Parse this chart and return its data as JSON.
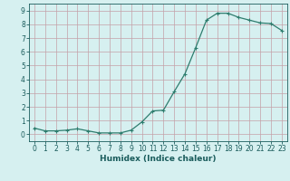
{
  "x": [
    0,
    1,
    2,
    3,
    4,
    5,
    6,
    7,
    8,
    9,
    10,
    11,
    12,
    13,
    14,
    15,
    16,
    17,
    18,
    19,
    20,
    21,
    22,
    23
  ],
  "y": [
    0.45,
    0.25,
    0.25,
    0.3,
    0.4,
    0.25,
    0.1,
    0.1,
    0.1,
    0.3,
    0.9,
    1.7,
    1.75,
    3.1,
    4.4,
    6.3,
    8.3,
    8.8,
    8.8,
    8.5,
    8.3,
    8.1,
    8.05,
    7.55
  ],
  "line_color": "#2e7d6e",
  "marker": "+",
  "markersize": 3,
  "linewidth": 0.9,
  "xlabel": "Humidex (Indice chaleur)",
  "xlim": [
    -0.5,
    23.5
  ],
  "ylim": [
    -0.5,
    9.5
  ],
  "yticks": [
    0,
    1,
    2,
    3,
    4,
    5,
    6,
    7,
    8,
    9
  ],
  "xticks": [
    0,
    1,
    2,
    3,
    4,
    5,
    6,
    7,
    8,
    9,
    10,
    11,
    12,
    13,
    14,
    15,
    16,
    17,
    18,
    19,
    20,
    21,
    22,
    23
  ],
  "background_color": "#d6f0f0",
  "grid_color": "#c4a0a8",
  "font_color": "#1a5c5c",
  "tick_fontsize": 5.5,
  "xlabel_fontsize": 6.5
}
